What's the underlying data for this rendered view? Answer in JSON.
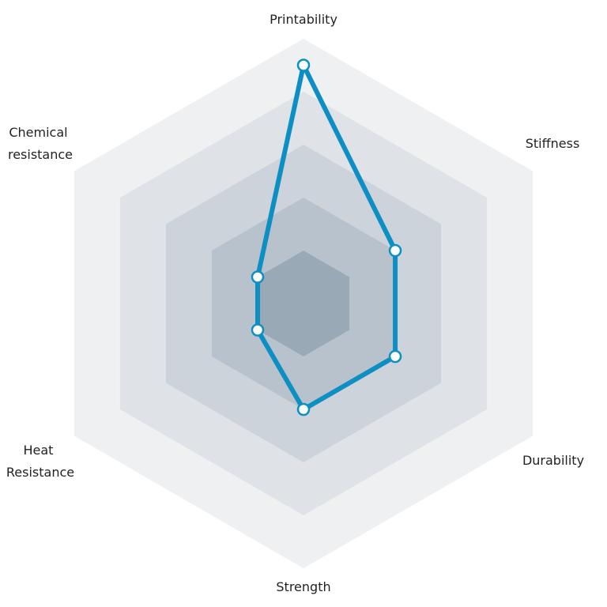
{
  "chart_data": {
    "type": "radar",
    "axes": [
      "Printability",
      "Stiffness",
      "Durability",
      "Strength",
      "Heat Resistance",
      "Chemical resistance"
    ],
    "axis_label_lines": [
      [
        "Printability"
      ],
      [
        "Stiffness"
      ],
      [
        "Durability"
      ],
      [
        "Strength"
      ],
      [
        "Heat",
        "Resistance"
      ],
      [
        "Chemical",
        "resistance"
      ]
    ],
    "scale": {
      "min": 0,
      "max": 5,
      "rings": 5
    },
    "series": [
      {
        "values": [
          4.5,
          2.0,
          2.0,
          2.0,
          1.0,
          1.0
        ],
        "color": "#0d8fc4"
      }
    ],
    "ring_colors": [
      "#eff0f2",
      "#dfe3e8",
      "#ccd3da",
      "#b8c2cc",
      "#9aa9b6"
    ],
    "grid": false,
    "legend": "none"
  }
}
